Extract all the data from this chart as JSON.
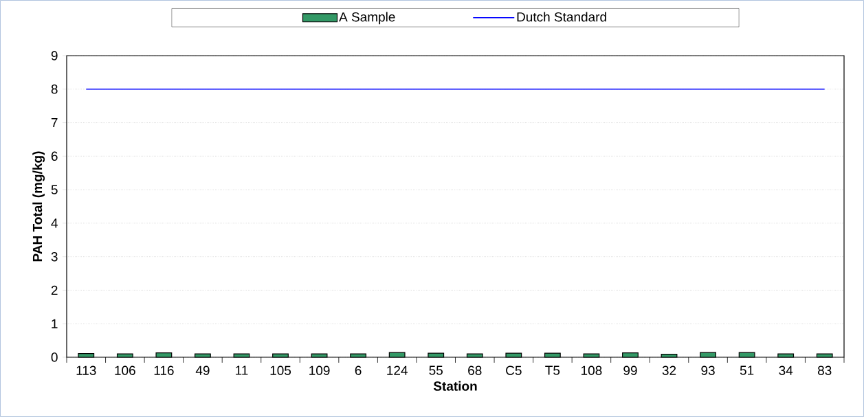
{
  "chart_data": {
    "type": "bar",
    "xlabel": "Station",
    "ylabel": "PAH Total (mg/kg)",
    "categories": [
      "113",
      "106",
      "116",
      "49",
      "11",
      "105",
      "109",
      "6",
      "124",
      "55",
      "68",
      "C5",
      "T5",
      "108",
      "99",
      "32",
      "93",
      "51",
      "34",
      "83"
    ],
    "series": [
      {
        "name": "A Sample",
        "color": "#339966",
        "values": [
          0.11,
          0.1,
          0.13,
          0.1,
          0.1,
          0.1,
          0.1,
          0.1,
          0.14,
          0.12,
          0.1,
          0.12,
          0.12,
          0.1,
          0.13,
          0.09,
          0.14,
          0.14,
          0.1,
          0.1
        ]
      },
      {
        "name": "Dutch Standard",
        "type": "line",
        "color": "#0000ff",
        "values": [
          8,
          8,
          8,
          8,
          8,
          8,
          8,
          8,
          8,
          8,
          8,
          8,
          8,
          8,
          8,
          8,
          8,
          8,
          8,
          8
        ]
      }
    ],
    "ylim": [
      0,
      9
    ],
    "yticks": [
      0,
      1,
      2,
      3,
      4,
      5,
      6,
      7,
      8,
      9
    ],
    "grid": "y",
    "legend": "top"
  }
}
